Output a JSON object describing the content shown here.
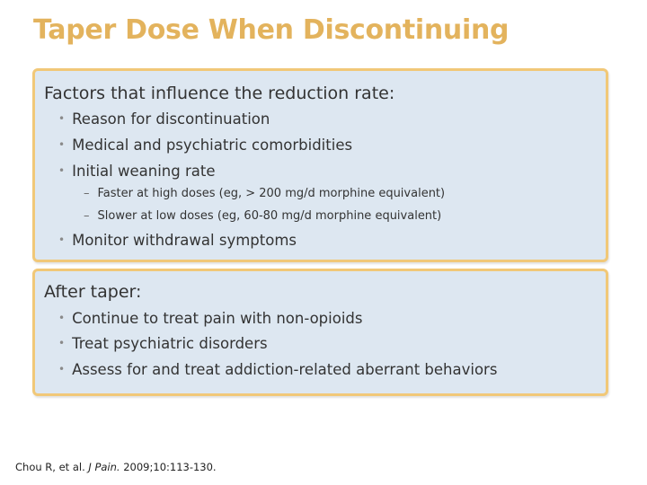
{
  "slide": {
    "title": "Taper Dose When Discontinuing"
  },
  "box1": {
    "heading": "Factors that influence the reduction rate:",
    "bullets": [
      "Reason for discontinuation",
      "Medical and psychiatric comorbidities",
      "Initial weaning rate"
    ],
    "sub_bullets": [
      "Faster at high doses (eg, > 200 mg/d morphine equivalent)",
      "Slower at low doses (eg, 60-80 mg/d morphine equivalent)"
    ],
    "last_bullet": "Monitor withdrawal symptoms"
  },
  "box2": {
    "heading": "After taper:",
    "bullets": [
      "Continue to treat pain with non-opioids",
      "Treat psychiatric disorders",
      "Assess for and treat addiction-related aberrant behaviors"
    ]
  },
  "citation": {
    "authors": "Chou R, et al.",
    "journal": "J Pain.",
    "details": "2009;10:113-130."
  },
  "colors": {
    "title": "#e3b35d",
    "box_fill": "#dde7f1",
    "box_border": "#f1c878"
  }
}
